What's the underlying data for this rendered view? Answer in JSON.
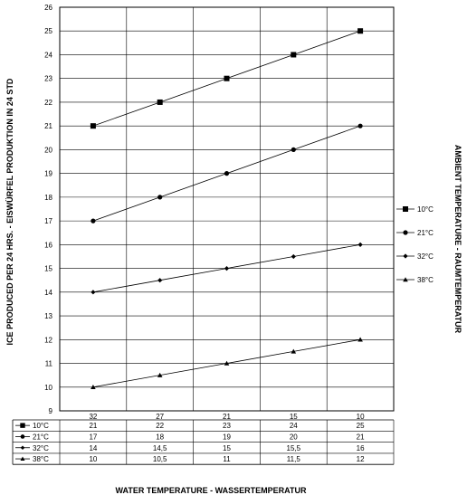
{
  "chart_data": {
    "type": "line",
    "xlabel": "WATER TEMPERATURE - WASSERTEMPERATUR",
    "ylabel": "ICE PRODUCED PER 24 HRS. - EISWÜRFEL PRODUKTION IN 24 STD",
    "legend_title": "AMBIENT TEMPERATURE - RAUMTEMPERATUR",
    "legend_position": "right",
    "grid": true,
    "categories": [
      "32",
      "27",
      "21",
      "15",
      "10"
    ],
    "ylim": [
      9,
      26
    ],
    "yticks": [
      "9",
      "10",
      "11",
      "12",
      "13",
      "14",
      "15",
      "16",
      "17",
      "18",
      "19",
      "20",
      "21",
      "22",
      "23",
      "24",
      "25",
      "26"
    ],
    "series": [
      {
        "name": "10°C",
        "marker": "square",
        "values": [
          21,
          22,
          23,
          24,
          25
        ],
        "labels": [
          "21",
          "22",
          "23",
          "24",
          "25"
        ]
      },
      {
        "name": "21°C",
        "marker": "circle",
        "values": [
          17,
          18,
          19,
          20,
          21
        ],
        "labels": [
          "17",
          "18",
          "19",
          "20",
          "21"
        ]
      },
      {
        "name": "32°C",
        "marker": "diamond",
        "values": [
          14,
          14.5,
          15,
          15.5,
          16
        ],
        "labels": [
          "14",
          "14,5",
          "15",
          "15,5",
          "16"
        ]
      },
      {
        "name": "38°C",
        "marker": "triangle",
        "values": [
          10,
          10.5,
          11,
          11.5,
          12
        ],
        "labels": [
          "10",
          "10,5",
          "11",
          "11,5",
          "12"
        ]
      }
    ]
  }
}
